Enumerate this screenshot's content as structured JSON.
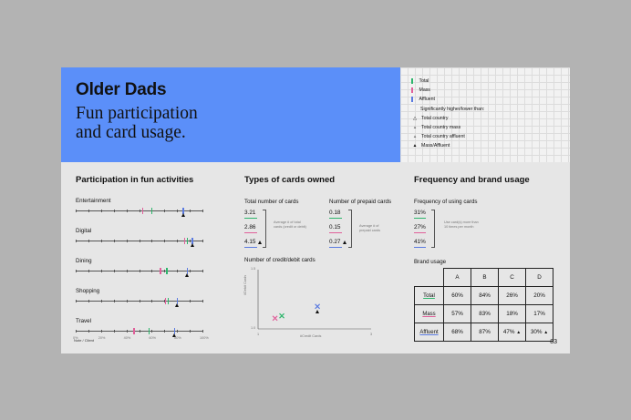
{
  "hero": {
    "title": "Older Dads",
    "subtitle_line1": "Fun participation",
    "subtitle_line2": "and card usage."
  },
  "legend": {
    "series": [
      {
        "label": "Total",
        "color": "#2db56b"
      },
      {
        "label": "Mass",
        "color": "#e0609a"
      },
      {
        "label": "Affluent",
        "color": "#5b7be0"
      }
    ],
    "sig_heading": "Significantly higher/lower than:",
    "symbols": [
      {
        "sym": "△",
        "label": "Total country"
      },
      {
        "sym": "▵",
        "label": "Total country mass"
      },
      {
        "sym": "▵",
        "label": "Total country affluent"
      },
      {
        "sym": "▲",
        "label": "Mass/Affluent"
      }
    ]
  },
  "participation": {
    "title": "Participation in fun activities",
    "activities": [
      "Entertainment",
      "Digital",
      "Dining",
      "Shopping",
      "Travel"
    ],
    "axis_ticks": [
      "0%",
      "20%",
      "40%",
      "60%",
      "80%",
      "100%"
    ],
    "footer": "Note / Client"
  },
  "cards": {
    "title": "Types of cards owned",
    "total_title": "Total number of cards",
    "total_values": [
      "3.21",
      "2.86",
      "4.15"
    ],
    "total_note": "Average # of total cards (credit or debit)",
    "prepaid_title": "Number of prepaid cards",
    "prepaid_values": [
      "0.18",
      "0.15",
      "0.27"
    ],
    "prepaid_note": "Average # of prepaid cards",
    "scatter_title": "Number of credit/debit cards",
    "scatter_ylabel": "#Debit Cards",
    "scatter_xlabel": "#Credit Cards",
    "y_ticks": [
      "1.5",
      "1.0"
    ],
    "x_ticks": [
      "1",
      "3"
    ]
  },
  "frequency": {
    "title": "Frequency and brand usage",
    "freq_title": "Frequency of using cards",
    "freq_values": [
      "31%",
      "27%",
      "41%"
    ],
    "freq_note": "Use card(s) more than 10 times per month",
    "brand_title": "Brand usage",
    "brand_headers": [
      "A",
      "B",
      "C",
      "D"
    ],
    "brand_rows": [
      {
        "label": "Total",
        "values": [
          "60%",
          "84%",
          "26%",
          "20%"
        ]
      },
      {
        "label": "Mass",
        "values": [
          "57%",
          "83%",
          "18%",
          "17%"
        ]
      },
      {
        "label": "Affluent",
        "values": [
          "68%",
          "87%",
          "47%",
          "30%"
        ]
      }
    ]
  },
  "page_number": "83",
  "chart_data": [
    {
      "type": "scatter",
      "title": "Number of credit/debit cards",
      "xlabel": "#Credit Cards",
      "ylabel": "#Debit Cards",
      "xlim": [
        1,
        3
      ],
      "ylim": [
        1.0,
        1.5
      ],
      "series": [
        {
          "name": "Total",
          "color": "#2db56b",
          "x": [
            1.42
          ],
          "y": [
            1.11
          ]
        },
        {
          "name": "Mass",
          "color": "#e0609a",
          "x": [
            1.3
          ],
          "y": [
            1.09
          ]
        },
        {
          "name": "Affluent",
          "color": "#5b7be0",
          "x": [
            2.05
          ],
          "y": [
            1.19
          ]
        }
      ]
    },
    {
      "type": "dot-plot",
      "title": "Participation in fun activities",
      "categories": [
        "Entertainment",
        "Digital",
        "Dining",
        "Shopping",
        "Travel"
      ],
      "xlim": [
        0,
        100
      ],
      "series": [
        {
          "name": "Total",
          "color": "#2db56b",
          "values": [
            60,
            88,
            72,
            73,
            58
          ]
        },
        {
          "name": "Mass",
          "color": "#e0609a",
          "values": [
            53,
            86,
            67,
            71,
            46
          ]
        },
        {
          "name": "Affluent",
          "color": "#5b7be0",
          "values": [
            85,
            92,
            88,
            80,
            78
          ]
        }
      ]
    }
  ]
}
